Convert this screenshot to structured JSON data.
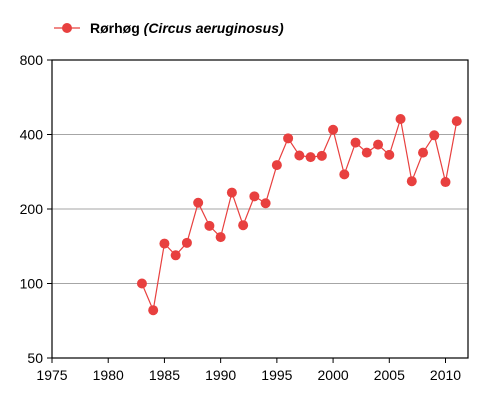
{
  "chart_data": {
    "type": "line",
    "title": "",
    "xlabel": "",
    "ylabel": "",
    "legend": {
      "placement": "top-left",
      "name": "Rørhøg",
      "species": "(Circus aeruginosus)"
    },
    "x_axis": {
      "range": [
        1975,
        2012
      ],
      "ticks": [
        1975,
        1980,
        1985,
        1990,
        1995,
        2000,
        2005,
        2010
      ],
      "tick_labels": [
        "1975",
        "1980",
        "1985",
        "1990",
        "1995",
        "2000",
        "2005",
        "2010"
      ]
    },
    "y_axis": {
      "scale": "log",
      "range": [
        50,
        800
      ],
      "ticks": [
        50,
        100,
        200,
        400,
        800
      ],
      "tick_labels": [
        "50",
        "100",
        "200",
        "400",
        "800"
      ]
    },
    "grid": {
      "horizontal": true,
      "vertical": false
    },
    "series": [
      {
        "name": "Rørhøg (Circus aeruginosus)",
        "color": "#e8403f",
        "points": [
          {
            "x": 1983,
            "y": 100
          },
          {
            "x": 1984,
            "y": 78
          },
          {
            "x": 1985,
            "y": 145
          },
          {
            "x": 1986,
            "y": 130
          },
          {
            "x": 1987,
            "y": 146
          },
          {
            "x": 1988,
            "y": 212
          },
          {
            "x": 1989,
            "y": 171
          },
          {
            "x": 1990,
            "y": 154
          },
          {
            "x": 1991,
            "y": 233
          },
          {
            "x": 1992,
            "y": 172
          },
          {
            "x": 1993,
            "y": 225
          },
          {
            "x": 1994,
            "y": 211
          },
          {
            "x": 1995,
            "y": 301
          },
          {
            "x": 1996,
            "y": 386
          },
          {
            "x": 1997,
            "y": 329
          },
          {
            "x": 1998,
            "y": 324
          },
          {
            "x": 1999,
            "y": 328
          },
          {
            "x": 2000,
            "y": 418
          },
          {
            "x": 2001,
            "y": 276
          },
          {
            "x": 2002,
            "y": 371
          },
          {
            "x": 2003,
            "y": 338
          },
          {
            "x": 2004,
            "y": 364
          },
          {
            "x": 2005,
            "y": 331
          },
          {
            "x": 2006,
            "y": 462
          },
          {
            "x": 2007,
            "y": 259
          },
          {
            "x": 2008,
            "y": 338
          },
          {
            "x": 2009,
            "y": 397
          },
          {
            "x": 2010,
            "y": 257
          },
          {
            "x": 2011,
            "y": 453
          }
        ]
      }
    ]
  }
}
